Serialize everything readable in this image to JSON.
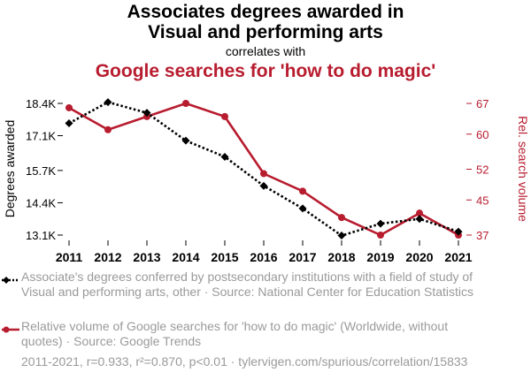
{
  "title_line1": "Associates degrees awarded in",
  "title_line2": "Visual and performing arts",
  "connector": "correlates with",
  "title_line3": "Google searches for 'how to do magic'",
  "chart_data": {
    "type": "line",
    "x": [
      2011,
      2012,
      2013,
      2014,
      2015,
      2016,
      2017,
      2018,
      2019,
      2020,
      2021
    ],
    "x_tick_labels": [
      "2011",
      "2012",
      "2013",
      "2014",
      "2015",
      "2016",
      "2017",
      "2018",
      "2019",
      "2020",
      "2021"
    ],
    "left_axis": {
      "label": "Degrees awarded",
      "ylim": [
        13100,
        18400
      ],
      "ticks": [
        13100,
        14400,
        15700,
        17100,
        18400
      ],
      "tick_labels": [
        "13.1K",
        "14.4K",
        "15.7K",
        "17.1K",
        "18.4K"
      ]
    },
    "right_axis": {
      "label": "Rel. search volume",
      "ylim": [
        37,
        67
      ],
      "ticks": [
        37,
        45,
        52,
        60,
        67
      ],
      "tick_labels": [
        "37",
        "45",
        "52",
        "60",
        "67"
      ]
    },
    "series": [
      {
        "name": "Associate's degrees conferred by postsecondary institutions with a field of study of Visual and performing arts, other · Source: National Center for Education Statistics",
        "axis": "left",
        "color": "#000000",
        "style": "dotted",
        "marker": "diamond",
        "values": [
          17600,
          18450,
          18020,
          16900,
          16250,
          15080,
          14170,
          13080,
          13560,
          13750,
          13240
        ]
      },
      {
        "name": "Relative volume of Google searches for 'how to do magic' (Worldwide, without quotes) · Source: Google Trends",
        "axis": "right",
        "color": "#b81c2f",
        "style": "solid",
        "marker": "circle",
        "values": [
          66,
          61,
          64,
          67,
          64,
          51,
          47,
          41,
          37,
          42,
          37
        ]
      }
    ],
    "grid": false
  },
  "legend": {
    "series1_text": "Associate's degrees conferred by postsecondary institutions with a field of study of Visual and performing arts, other · Source: National Center for Education Statistics",
    "series2_text": "Relative volume of Google searches for 'how to do magic' (Worldwide, without quotes) · Source: Google Trends"
  },
  "footer": "2011-2021, r=0.933, r²=0.870, p<0.01 · tylervigen.com/spurious/correlation/15833",
  "colors": {
    "accent_red": "#b81c2f",
    "black": "#000000",
    "gray_text": "#9a9a9a"
  }
}
